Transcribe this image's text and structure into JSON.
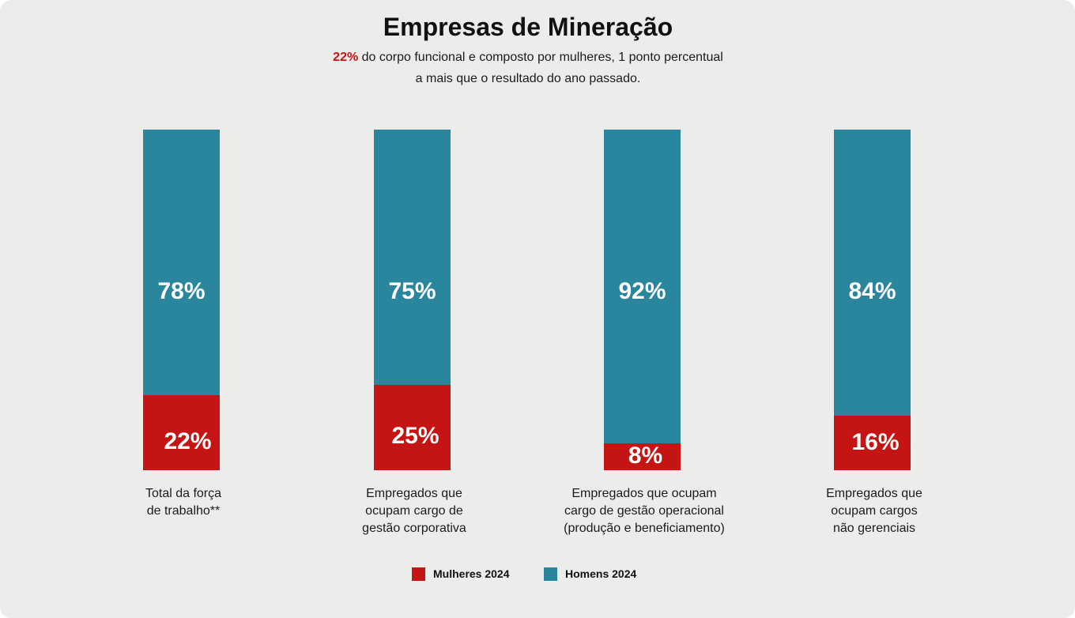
{
  "title": "Empresas de Mineração",
  "subtitle": {
    "highlight": "22%",
    "text": " do corpo funcional e composto por mulheres, 1 ponto percentual a mais que o resultado do ano passado."
  },
  "colors": {
    "mulheres": "#c41414",
    "homens": "#2a869d",
    "background": "#ececea"
  },
  "chart_data": {
    "type": "bar",
    "stacked": true,
    "normalized_percent": true,
    "categories": [
      "Total da força\nde trabalho**",
      "Empregados que\nocupam cargo de\ngestão corporativa",
      "Empregados que ocupam\ncargo de gestão operacional\n(produção e beneficiamento)",
      "Empregados que\nocupam cargos\nnão gerenciais"
    ],
    "series": [
      {
        "name": "Mulheres 2024",
        "values": [
          22,
          25,
          8,
          16
        ],
        "labels": [
          "22%",
          "25%",
          "8%",
          "16%"
        ],
        "color": "#c41414"
      },
      {
        "name": "Homens 2024",
        "values": [
          78,
          75,
          92,
          84
        ],
        "labels": [
          "78%",
          "75%",
          "92%",
          "84%"
        ],
        "color": "#2a869d"
      }
    ],
    "ylim": [
      0,
      100
    ],
    "grid": false,
    "legend": "bottom-center"
  }
}
